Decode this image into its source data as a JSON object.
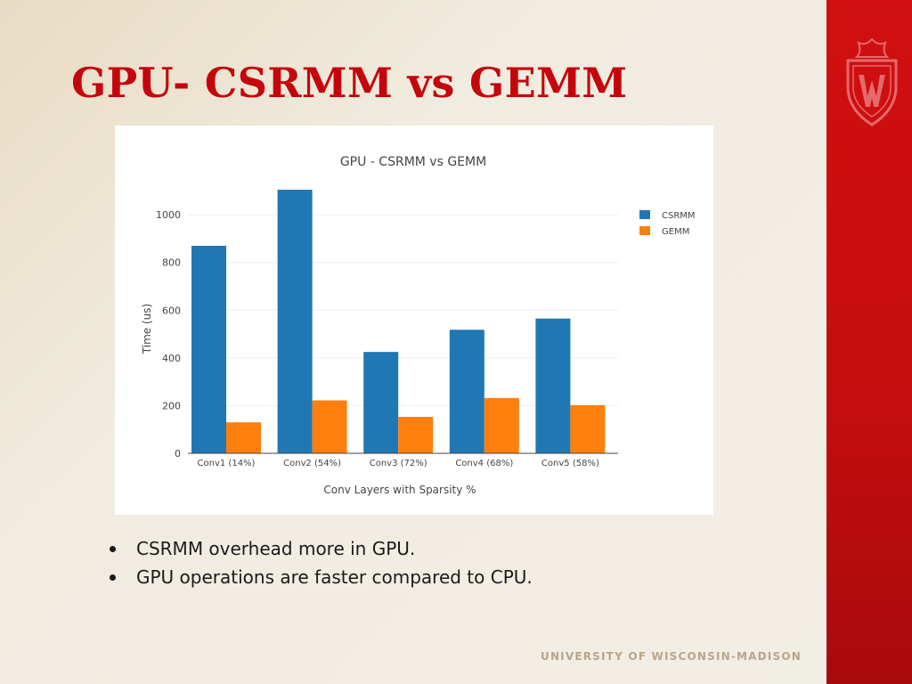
{
  "slide": {
    "title": "GPU- CSRMM vs GEMM",
    "bullets": [
      "CSRMM overhead more in GPU.",
      "GPU operations are faster compared to CPU."
    ],
    "footer": "UNIVERSITY OF WISCONSIN-MADISON",
    "accent_color": "#c5050c",
    "band_color": "#c40d0e",
    "logo_icon": "uw-crest-icon"
  },
  "chart_data": {
    "type": "bar",
    "title": "GPU - CSRMM vs GEMM",
    "xlabel": "Conv Layers with Sparsity %",
    "ylabel": "Time (us)",
    "categories": [
      "Conv1 (14%)",
      "Conv2 (54%)",
      "Conv3 (72%)",
      "Conv4 (68%)",
      "Conv5 (58%)"
    ],
    "series": [
      {
        "name": "CSRMM",
        "color": "#1f77b4",
        "values": [
          870,
          1105,
          425,
          518,
          565
        ]
      },
      {
        "name": "GEMM",
        "color": "#ff7f0e",
        "values": [
          130,
          222,
          153,
          232,
          202
        ]
      }
    ],
    "yticks": [
      0,
      200,
      400,
      600,
      800,
      1000
    ],
    "ylim": [
      0,
      1150
    ],
    "grid": true,
    "legend": "top-right"
  }
}
